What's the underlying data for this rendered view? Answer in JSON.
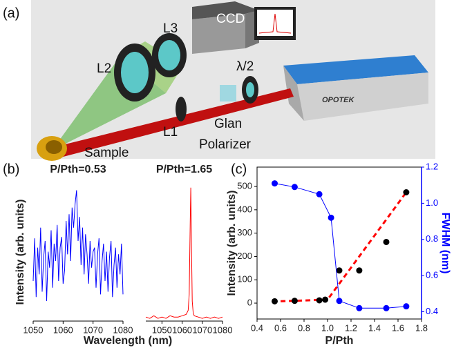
{
  "panel_labels": [
    "(a)",
    "(b)",
    "(c)"
  ],
  "setup": {
    "labels": [
      "CCD",
      "L3",
      "L2",
      "λ/2",
      "L1",
      "Glan",
      "Polarizer",
      "Sample",
      "OPOTEK"
    ]
  },
  "panel_b": {
    "xlabel": "Wavelength (nm)",
    "ylabel": "Intensity (arb. units)"
  },
  "chart_data": [
    {
      "type": "line",
      "title": "P/Pth=0.53",
      "xlim": [
        1050,
        1080
      ],
      "ylim": [
        0,
        1.05
      ],
      "xticks": [
        1050,
        1060,
        1070,
        1080
      ],
      "series": [
        {
          "color": "#0000ff",
          "mode": "lines",
          "x": [
            1050,
            1050.5,
            1051,
            1051.5,
            1052,
            1052.5,
            1053,
            1053.5,
            1054,
            1054.5,
            1055,
            1055.5,
            1056,
            1056.5,
            1057,
            1057.5,
            1058,
            1058.5,
            1059,
            1059.5,
            1060,
            1060.5,
            1061,
            1061.5,
            1062,
            1062.5,
            1063,
            1063.5,
            1064,
            1064.5,
            1065,
            1065.5,
            1066,
            1066.5,
            1067,
            1067.5,
            1068,
            1068.5,
            1069,
            1069.5,
            1070,
            1070.5,
            1071,
            1071.5,
            1072,
            1072.5,
            1073,
            1073.5,
            1074,
            1074.5,
            1075,
            1075.5,
            1076,
            1076.5,
            1077,
            1077.5,
            1078,
            1078.5,
            1079,
            1079.5,
            1080
          ],
          "values": [
            0.3,
            0.62,
            0.18,
            0.55,
            0.35,
            0.7,
            0.22,
            0.48,
            0.6,
            0.15,
            0.52,
            0.4,
            0.68,
            0.25,
            0.58,
            0.45,
            0.72,
            0.3,
            0.55,
            0.63,
            0.28,
            0.38,
            0.75,
            0.5,
            0.8,
            0.45,
            0.85,
            0.7,
            0.88,
            0.98,
            0.6,
            0.78,
            0.42,
            0.7,
            0.35,
            0.65,
            0.5,
            0.28,
            0.6,
            0.4,
            0.52,
            0.55,
            0.25,
            0.5,
            0.62,
            0.2,
            0.45,
            0.58,
            0.3,
            0.52,
            0.22,
            0.48,
            0.6,
            0.18,
            0.42,
            0.55,
            0.25,
            0.5,
            0.35,
            0.58,
            0.2
          ]
        }
      ]
    },
    {
      "type": "line",
      "title": "P/Pth=1.65",
      "xlim": [
        1042,
        1080
      ],
      "ylim": [
        0,
        1.05
      ],
      "xticks": [
        1050,
        1060,
        1070,
        1080
      ],
      "series": [
        {
          "color": "#ff0000",
          "mode": "lines",
          "x": [
            1042,
            1044,
            1046,
            1048,
            1050,
            1052,
            1054,
            1056,
            1058,
            1060,
            1062,
            1063,
            1063.5,
            1064,
            1064.3,
            1064.6,
            1065,
            1065.5,
            1066,
            1068,
            1070,
            1072,
            1074,
            1076,
            1078,
            1080
          ],
          "values": [
            0.03,
            0.02,
            0.04,
            0.02,
            0.03,
            0.02,
            0.04,
            0.03,
            0.03,
            0.04,
            0.05,
            0.08,
            0.2,
            0.75,
            1.0,
            0.6,
            0.15,
            0.06,
            0.04,
            0.03,
            0.02,
            0.03,
            0.02,
            0.03,
            0.02,
            0.03
          ]
        }
      ]
    },
    {
      "type": "line",
      "xlabel": "P/Pth",
      "ylabel": "Intensity (arb. units)",
      "y2label": "FWHM (nm)",
      "xlim": [
        0.4,
        1.8
      ],
      "ylim": [
        -68,
        583
      ],
      "y2lim": [
        0.36,
        1.2
      ],
      "xticks": [
        0.4,
        0.6,
        0.8,
        {
          "value": 1.0,
          "label": "1.0"
        },
        1.2,
        1.4,
        1.6,
        1.8
      ],
      "yticks": [
        0,
        100,
        200,
        300,
        400,
        500
      ],
      "y2ticks": [
        0.4,
        0.6,
        0.8,
        {
          "value": 1.0,
          "label": "1.0"
        },
        1.2
      ],
      "y2color": "#0000ff",
      "series": [
        {
          "color": "#ff0000",
          "mode": "dashed",
          "x": [
            0.53,
            1.0,
            1.67
          ],
          "values": [
            7,
            15,
            475
          ]
        },
        {
          "color": "#000000",
          "mode": "markers",
          "x": [
            0.55,
            0.72,
            0.93,
            0.98,
            1.1,
            1.27,
            1.5,
            1.67
          ],
          "values": [
            8,
            10,
            12,
            15,
            140,
            140,
            262,
            475
          ]
        },
        {
          "color": "#0000ff",
          "mode": "lines+markers",
          "axis": "y2",
          "x": [
            0.55,
            0.72,
            0.93,
            1.03,
            1.1,
            1.27,
            1.5,
            1.67
          ],
          "values": [
            1.11,
            1.09,
            1.05,
            0.92,
            0.46,
            0.42,
            0.42,
            0.43
          ]
        }
      ]
    }
  ]
}
